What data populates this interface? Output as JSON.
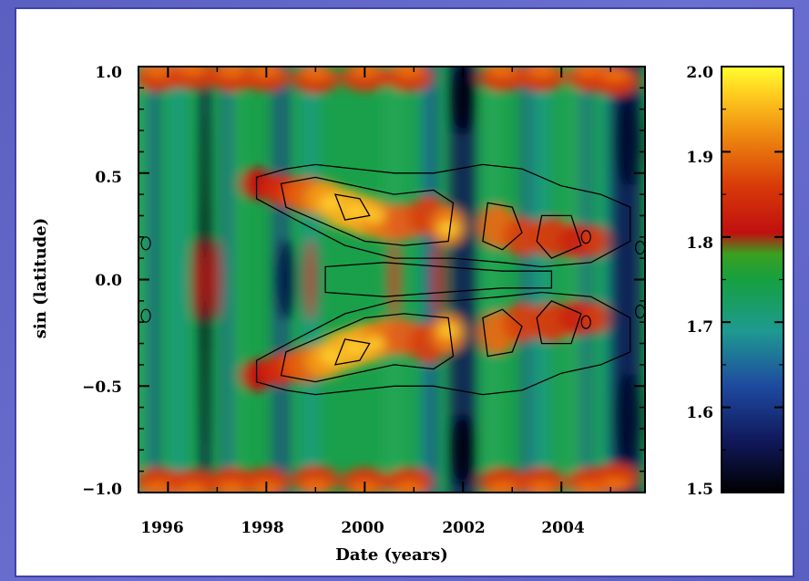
{
  "chart_data": [
    {
      "type": "heatmap",
      "title": "",
      "xlabel": "Date (years)",
      "ylabel": "sin (latitude)",
      "xlim": [
        1995.4,
        2005.7
      ],
      "ylim": [
        -1.0,
        1.0
      ],
      "x_ticks": [
        "1996",
        "1998",
        "2000",
        "2002",
        "2004"
      ],
      "y_ticks": [
        "1.0",
        "0.5",
        "0.0",
        "−0.5",
        "−1.0"
      ],
      "contours": true,
      "features": {
        "low_value_bands_years": [
          1996.7,
          1998.4,
          2002.0,
          2005.3
        ],
        "high_value_activity_band": {
          "start_year": 1997.8,
          "end_year": 2005.0,
          "lat_start": 0.45,
          "lat_end": 0.15
        }
      }
    },
    {
      "type": "colorbar",
      "min": 1.5,
      "max": 2.0,
      "ticks": [
        "2.0",
        "1.9",
        "1.8",
        "1.7",
        "1.6",
        "1.5"
      ],
      "colormap": [
        "#000000",
        "#1a2a8a",
        "#1e9a90",
        "#12a030",
        "#c81010",
        "#e85a00",
        "#ffd000",
        "#ffff20"
      ]
    }
  ],
  "colors": {
    "page_background": "#5a5fc0",
    "frame_border": "#3f43a8",
    "panel": "#ffffff"
  }
}
